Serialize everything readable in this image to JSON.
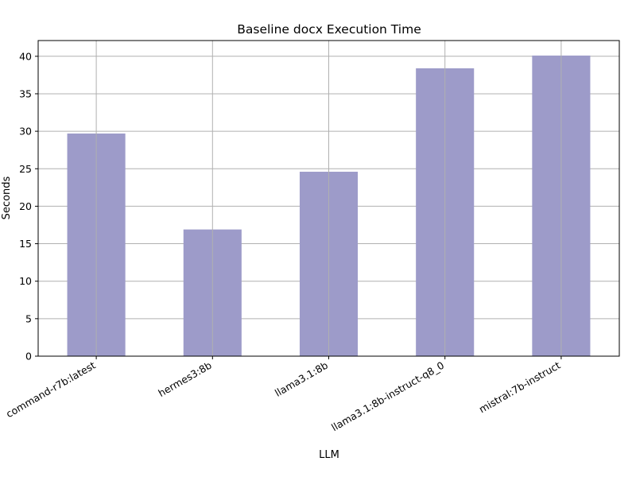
{
  "chart_data": {
    "type": "bar",
    "title": "Baseline docx Execution Time",
    "xlabel": "LLM",
    "ylabel": "Seconds",
    "categories": [
      "command-r7b:latest",
      "hermes3:8b",
      "llama3.1:8b",
      "llama3.1:8b-instruct-q8_0",
      "mistral:7b-instruct"
    ],
    "values": [
      29.7,
      16.9,
      24.6,
      38.4,
      40.1
    ],
    "ylim": [
      0,
      42.1
    ],
    "yticks": [
      0,
      5,
      10,
      15,
      20,
      25,
      30,
      35,
      40
    ],
    "grid": true,
    "legend": "none",
    "colors": {
      "bar": "#9d9bc9",
      "grid": "#b0b0b0",
      "axis": "#000000"
    }
  }
}
